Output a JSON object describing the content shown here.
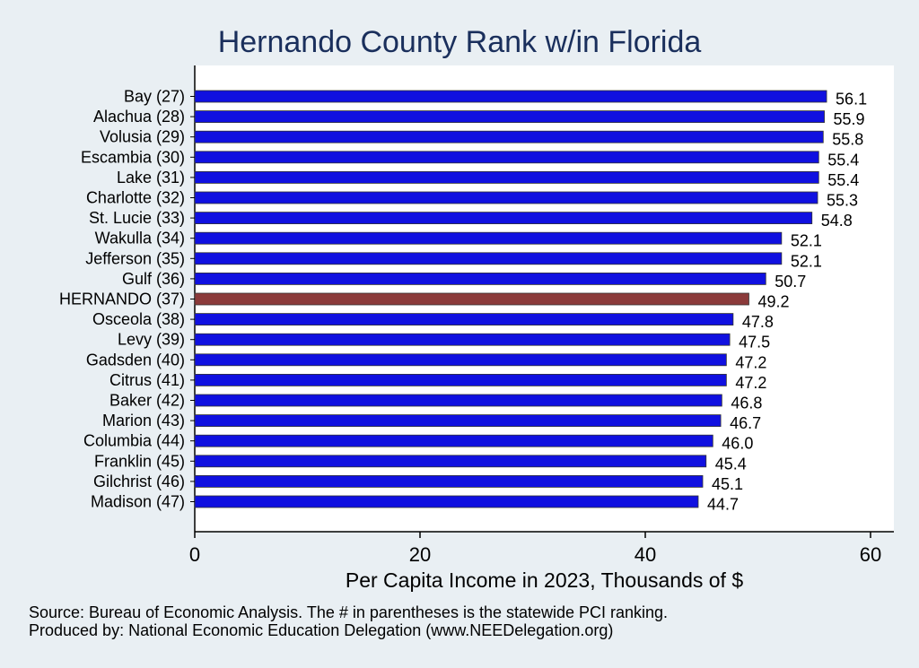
{
  "chart_data": {
    "type": "bar",
    "orientation": "horizontal",
    "title": "Hernando County Rank w/in Florida",
    "xlabel": "Per Capita Income in 2023, Thousands of $",
    "ylabel": "",
    "xlim": [
      0,
      62
    ],
    "xticks": [
      0,
      20,
      40,
      60
    ],
    "grid": false,
    "categories": [
      "Bay (27)",
      "Alachua (28)",
      "Volusia (29)",
      "Escambia (30)",
      "Lake (31)",
      "Charlotte (32)",
      "St. Lucie (33)",
      "Wakulla (34)",
      "Jefferson (35)",
      "Gulf (36)",
      "HERNANDO (37)",
      "Osceola (38)",
      "Levy (39)",
      "Gadsden (40)",
      "Citrus (41)",
      "Baker (42)",
      "Marion (43)",
      "Columbia (44)",
      "Franklin (45)",
      "Gilchrist (46)",
      "Madison (47)"
    ],
    "values": [
      56.1,
      55.9,
      55.8,
      55.4,
      55.4,
      55.3,
      54.8,
      52.1,
      52.1,
      50.7,
      49.2,
      47.8,
      47.5,
      47.2,
      47.2,
      46.8,
      46.7,
      46.0,
      45.4,
      45.1,
      44.7
    ],
    "value_labels": [
      "56.1",
      "55.9",
      "55.8",
      "55.4",
      "55.4",
      "55.3",
      "54.8",
      "52.1",
      "52.1",
      "50.7",
      "49.2",
      "47.8",
      "47.5",
      "47.2",
      "47.2",
      "46.8",
      "46.7",
      "46.0",
      "45.4",
      "45.1",
      "44.7"
    ],
    "highlight_index": 10,
    "colors": {
      "bar": "#1010e0",
      "highlight": "#8b3a3a",
      "bar_edge": "#333333"
    }
  },
  "notes": {
    "source": "Source: Bureau of Economic Analysis. The # in parentheses is the statewide PCI ranking.",
    "producer": "Produced by: National Economic Education Delegation (www.NEEDelegation.org)"
  }
}
